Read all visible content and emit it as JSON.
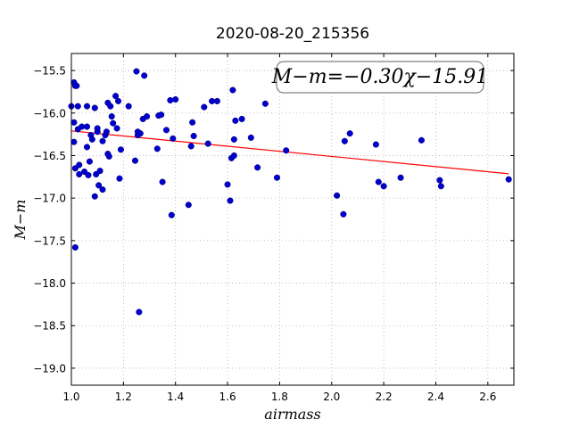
{
  "chart_data": {
    "type": "scatter",
    "title": "2020-08-20_215356",
    "xlabel": "airmass",
    "ylabel": "M−m",
    "xlim": [
      1.0,
      2.7
    ],
    "ylim": [
      -15.3,
      -19.2
    ],
    "y_inverted": true,
    "grid": true,
    "xticks": [
      1.0,
      1.2,
      1.4,
      1.6,
      1.8,
      2.0,
      2.2,
      2.4,
      2.6
    ],
    "xtick_labels": [
      "1.0",
      "1.2",
      "1.4",
      "1.6",
      "1.8",
      "2.0",
      "2.2",
      "2.4",
      "2.6"
    ],
    "yticks": [
      -15.5,
      -16.0,
      -16.5,
      -17.0,
      -17.5,
      -18.0,
      -18.5,
      -19.0
    ],
    "ytick_labels": [
      "−15.5",
      "−16.0",
      "−16.5",
      "−17.0",
      "−17.5",
      "−18.0",
      "−18.5",
      "−19.0"
    ],
    "annotation": "M−m=−0.30χ−15.91",
    "fit": {
      "slope": -0.3,
      "intercept": -15.91,
      "x_range": [
        1.0,
        2.68
      ],
      "color": "#ff0000"
    },
    "marker_color": "#0000cc",
    "points": [
      [
        1.0,
        -15.92
      ],
      [
        1.01,
        -16.34
      ],
      [
        1.01,
        -15.64
      ],
      [
        1.015,
        -15.68
      ],
      [
        1.02,
        -15.68
      ],
      [
        1.01,
        -16.11
      ],
      [
        1.015,
        -16.65
      ],
      [
        1.015,
        -17.58
      ],
      [
        1.025,
        -15.92
      ],
      [
        1.025,
        -16.19
      ],
      [
        1.03,
        -16.72
      ],
      [
        1.03,
        -16.61
      ],
      [
        1.04,
        -16.16
      ],
      [
        1.05,
        -16.69
      ],
      [
        1.06,
        -15.92
      ],
      [
        1.06,
        -16.16
      ],
      [
        1.06,
        -16.4
      ],
      [
        1.065,
        -16.73
      ],
      [
        1.07,
        -16.57
      ],
      [
        1.075,
        -16.26
      ],
      [
        1.08,
        -16.31
      ],
      [
        1.09,
        -15.94
      ],
      [
        1.09,
        -16.98
      ],
      [
        1.095,
        -16.72
      ],
      [
        1.1,
        -16.18
      ],
      [
        1.1,
        -16.22
      ],
      [
        1.105,
        -16.85
      ],
      [
        1.11,
        -16.68
      ],
      [
        1.12,
        -16.9
      ],
      [
        1.12,
        -16.33
      ],
      [
        1.13,
        -16.26
      ],
      [
        1.135,
        -16.22
      ],
      [
        1.14,
        -15.88
      ],
      [
        1.14,
        -16.48
      ],
      [
        1.145,
        -16.51
      ],
      [
        1.15,
        -15.92
      ],
      [
        1.155,
        -16.04
      ],
      [
        1.16,
        -16.12
      ],
      [
        1.17,
        -15.8
      ],
      [
        1.175,
        -16.18
      ],
      [
        1.18,
        -15.86
      ],
      [
        1.185,
        -16.77
      ],
      [
        1.19,
        -16.43
      ],
      [
        1.22,
        -15.92
      ],
      [
        1.245,
        -16.56
      ],
      [
        1.25,
        -15.51
      ],
      [
        1.255,
        -16.22
      ],
      [
        1.255,
        -16.26
      ],
      [
        1.26,
        -18.34
      ],
      [
        1.265,
        -16.24
      ],
      [
        1.275,
        -16.07
      ],
      [
        1.28,
        -15.56
      ],
      [
        1.29,
        -16.04
      ],
      [
        1.33,
        -16.42
      ],
      [
        1.335,
        -16.03
      ],
      [
        1.345,
        -16.02
      ],
      [
        1.35,
        -16.81
      ],
      [
        1.365,
        -16.2
      ],
      [
        1.38,
        -15.85
      ],
      [
        1.385,
        -17.2
      ],
      [
        1.39,
        -16.3
      ],
      [
        1.4,
        -15.84
      ],
      [
        1.45,
        -17.08
      ],
      [
        1.46,
        -16.39
      ],
      [
        1.465,
        -16.11
      ],
      [
        1.47,
        -16.27
      ],
      [
        1.51,
        -15.93
      ],
      [
        1.525,
        -16.36
      ],
      [
        1.54,
        -15.86
      ],
      [
        1.56,
        -15.86
      ],
      [
        1.6,
        -16.84
      ],
      [
        1.61,
        -17.03
      ],
      [
        1.615,
        -16.53
      ],
      [
        1.62,
        -15.73
      ],
      [
        1.625,
        -16.5
      ],
      [
        1.625,
        -16.31
      ],
      [
        1.63,
        -16.09
      ],
      [
        1.655,
        -16.07
      ],
      [
        1.69,
        -16.29
      ],
      [
        1.715,
        -16.64
      ],
      [
        1.745,
        -15.89
      ],
      [
        1.79,
        -16.76
      ],
      [
        1.825,
        -16.44
      ],
      [
        2.02,
        -16.97
      ],
      [
        2.045,
        -17.19
      ],
      [
        2.05,
        -16.33
      ],
      [
        2.07,
        -16.24
      ],
      [
        2.17,
        -16.37
      ],
      [
        2.18,
        -16.81
      ],
      [
        2.2,
        -16.86
      ],
      [
        2.265,
        -16.76
      ],
      [
        2.345,
        -16.32
      ],
      [
        2.415,
        -16.79
      ],
      [
        2.42,
        -16.86
      ],
      [
        2.68,
        -16.78
      ]
    ]
  }
}
